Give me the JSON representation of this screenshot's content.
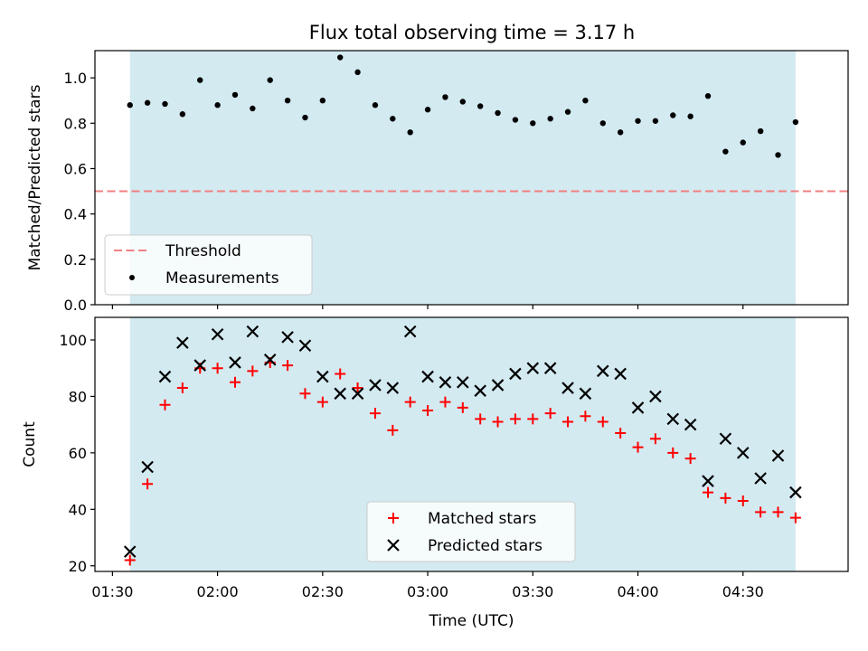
{
  "title": "Flux total observing time = 3.17 h",
  "colors": {
    "shade": "#d3eaf1",
    "threshold": "#f08080",
    "matched": "#ff0000",
    "predicted": "#000000",
    "measurement": "#000000"
  },
  "chart_data": [
    {
      "type": "scatter",
      "ylabel": "Matched/Predicted stars",
      "ylim": [
        0,
        1.12
      ],
      "yticks": [
        0.0,
        0.2,
        0.4,
        0.6,
        0.8,
        1.0
      ],
      "ytick_labels": [
        "0.0",
        "0.2",
        "0.4",
        "0.6",
        "0.8",
        "1.0"
      ],
      "xlim": [
        "01:25",
        "05:00"
      ],
      "xticks": [
        "01:30",
        "02:00",
        "02:30",
        "03:00",
        "03:30",
        "04:00",
        "04:30"
      ],
      "shaded_span": [
        "01:35",
        "04:45"
      ],
      "legend_position": "lower-left",
      "threshold": {
        "name": "Threshold",
        "value": 0.5,
        "style": "dashed"
      },
      "series": [
        {
          "name": "Measurements",
          "x": [
            "01:35",
            "01:40",
            "01:45",
            "01:50",
            "01:55",
            "02:00",
            "02:05",
            "02:10",
            "02:15",
            "02:20",
            "02:25",
            "02:30",
            "02:35",
            "02:40",
            "02:45",
            "02:50",
            "02:55",
            "03:00",
            "03:05",
            "03:10",
            "03:15",
            "03:20",
            "03:25",
            "03:30",
            "03:35",
            "03:40",
            "03:45",
            "03:50",
            "03:55",
            "04:00",
            "04:05",
            "04:10",
            "04:15",
            "04:20",
            "04:25",
            "04:30",
            "04:35",
            "04:40",
            "04:45"
          ],
          "y": [
            0.88,
            0.89,
            0.885,
            0.84,
            0.99,
            0.88,
            0.925,
            0.865,
            0.99,
            0.9,
            0.825,
            0.9,
            1.09,
            1.025,
            0.88,
            0.82,
            0.76,
            0.86,
            0.915,
            0.895,
            0.875,
            0.845,
            0.815,
            0.8,
            0.82,
            0.85,
            0.9,
            0.8,
            0.76,
            0.81,
            0.81,
            0.835,
            0.83,
            0.92,
            0.675,
            0.715,
            0.765,
            0.66,
            0.805
          ]
        }
      ]
    },
    {
      "type": "scatter",
      "xlabel": "Time (UTC)",
      "ylabel": "Count",
      "ylim": [
        18,
        108
      ],
      "yticks": [
        20,
        40,
        60,
        80,
        100
      ],
      "ytick_labels": [
        "20",
        "40",
        "60",
        "80",
        "100"
      ],
      "xlim": [
        "01:25",
        "05:00"
      ],
      "xticks": [
        "01:30",
        "02:00",
        "02:30",
        "03:00",
        "03:30",
        "04:00",
        "04:30"
      ],
      "xtick_labels": [
        "01:30",
        "02:00",
        "02:30",
        "03:00",
        "03:30",
        "04:00",
        "04:30"
      ],
      "shaded_span": [
        "01:35",
        "04:45"
      ],
      "legend_position": "lower-center",
      "series": [
        {
          "name": "Matched stars",
          "marker": "+",
          "x": [
            "01:35",
            "01:40",
            "01:45",
            "01:50",
            "01:55",
            "02:00",
            "02:05",
            "02:10",
            "02:15",
            "02:20",
            "02:25",
            "02:30",
            "02:35",
            "02:40",
            "02:45",
            "02:50",
            "02:55",
            "03:00",
            "03:05",
            "03:10",
            "03:15",
            "03:20",
            "03:25",
            "03:30",
            "03:35",
            "03:40",
            "03:45",
            "03:50",
            "03:55",
            "04:00",
            "04:05",
            "04:10",
            "04:15",
            "04:20",
            "04:25",
            "04:30",
            "04:35",
            "04:40",
            "04:45"
          ],
          "y": [
            22,
            49,
            77,
            83,
            90,
            90,
            85,
            89,
            92,
            91,
            81,
            78,
            88,
            83,
            74,
            68,
            78,
            75,
            78,
            76,
            72,
            71,
            72,
            72,
            74,
            71,
            73,
            71,
            67,
            62,
            65,
            60,
            58,
            46,
            44,
            43,
            39,
            39,
            37
          ]
        },
        {
          "name": "Predicted stars",
          "marker": "x",
          "x": [
            "01:35",
            "01:40",
            "01:45",
            "01:50",
            "01:55",
            "02:00",
            "02:05",
            "02:10",
            "02:15",
            "02:20",
            "02:25",
            "02:30",
            "02:35",
            "02:40",
            "02:45",
            "02:50",
            "02:55",
            "03:00",
            "03:05",
            "03:10",
            "03:15",
            "03:20",
            "03:25",
            "03:30",
            "03:35",
            "03:40",
            "03:45",
            "03:50",
            "03:55",
            "04:00",
            "04:05",
            "04:10",
            "04:15",
            "04:20",
            "04:25",
            "04:30",
            "04:35",
            "04:40",
            "04:45"
          ],
          "y": [
            25,
            55,
            87,
            99,
            91,
            102,
            92,
            103,
            93,
            101,
            98,
            87,
            81,
            81,
            84,
            83,
            103,
            87,
            85,
            85,
            82,
            84,
            88,
            90,
            90,
            83,
            81,
            89,
            88,
            76,
            80,
            72,
            70,
            50,
            65,
            60,
            51,
            59,
            46
          ]
        }
      ]
    }
  ]
}
